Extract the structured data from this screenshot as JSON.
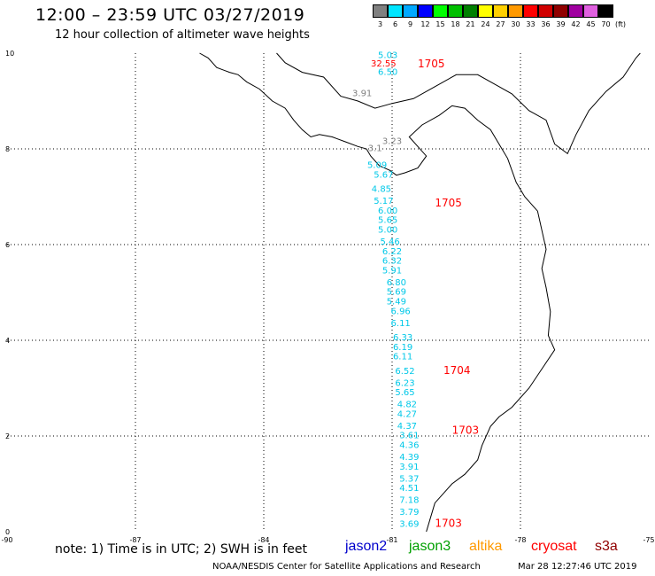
{
  "header": {
    "title": "12:00 – 23:59 UTC 03/27/2019",
    "subtitle": "12 hour collection of altimeter wave heights"
  },
  "legend": {
    "units": "(ft)",
    "bins": [
      {
        "label": "3",
        "color": "#808080"
      },
      {
        "label": "6",
        "color": "#00e5ff"
      },
      {
        "label": "9",
        "color": "#00a8ff"
      },
      {
        "label": "12",
        "color": "#0000ff"
      },
      {
        "label": "15",
        "color": "#00ff00"
      },
      {
        "label": "18",
        "color": "#00c000"
      },
      {
        "label": "21",
        "color": "#008000"
      },
      {
        "label": "24",
        "color": "#ffff00"
      },
      {
        "label": "27",
        "color": "#ffd000"
      },
      {
        "label": "30",
        "color": "#ff9900"
      },
      {
        "label": "33",
        "color": "#ff0000"
      },
      {
        "label": "36",
        "color": "#d00000"
      },
      {
        "label": "39",
        "color": "#900000"
      },
      {
        "label": "42",
        "color": "#a000a0"
      },
      {
        "label": "45",
        "color": "#e060e0"
      },
      {
        "label": "70",
        "color": "#000000"
      }
    ]
  },
  "axes": {
    "x_ticks": [
      "-90",
      "-87",
      "-84",
      "-81",
      "-78",
      "-75"
    ],
    "y_ticks": [
      "0",
      "2",
      "4",
      "6",
      "8",
      "10"
    ]
  },
  "observations": [
    {
      "lon": -81.1,
      "lat": 9.9,
      "value": "5.03",
      "color": "#00c8e8"
    },
    {
      "lon": -81.2,
      "lat": 9.72,
      "value": "32.55",
      "color": "#ff0000"
    },
    {
      "lon": -81.1,
      "lat": 9.55,
      "value": "6.50",
      "color": "#00c8e8"
    },
    {
      "lon": -81.7,
      "lat": 9.1,
      "value": "3.91",
      "color": "#808080"
    },
    {
      "lon": -81.0,
      "lat": 8.1,
      "value": "3.23",
      "color": "#808080"
    },
    {
      "lon": -81.4,
      "lat": 7.95,
      "value": "3.1",
      "color": "#808080"
    },
    {
      "lon": -81.35,
      "lat": 7.6,
      "value": "5.09",
      "color": "#00c8e8"
    },
    {
      "lon": -81.2,
      "lat": 7.4,
      "value": "5.67",
      "color": "#00c8e8"
    },
    {
      "lon": -81.25,
      "lat": 7.1,
      "value": "4.85",
      "color": "#00c8e8"
    },
    {
      "lon": -81.2,
      "lat": 6.85,
      "value": "5.17",
      "color": "#00c8e8"
    },
    {
      "lon": -81.1,
      "lat": 6.65,
      "value": "6.00",
      "color": "#00c8e8"
    },
    {
      "lon": -81.1,
      "lat": 6.45,
      "value": "5.65",
      "color": "#00c8e8"
    },
    {
      "lon": -81.1,
      "lat": 6.25,
      "value": "5.00",
      "color": "#00c8e8"
    },
    {
      "lon": -81.05,
      "lat": 6.0,
      "value": "5.46",
      "color": "#00c8e8"
    },
    {
      "lon": -81.0,
      "lat": 5.8,
      "value": "6.22",
      "color": "#00c8e8"
    },
    {
      "lon": -81.0,
      "lat": 5.6,
      "value": "6.32",
      "color": "#00c8e8"
    },
    {
      "lon": -81.0,
      "lat": 5.4,
      "value": "5.91",
      "color": "#00c8e8"
    },
    {
      "lon": -80.9,
      "lat": 5.15,
      "value": "6.80",
      "color": "#00c8e8"
    },
    {
      "lon": -80.9,
      "lat": 4.95,
      "value": "5.69",
      "color": "#00c8e8"
    },
    {
      "lon": -80.9,
      "lat": 4.75,
      "value": "5.49",
      "color": "#00c8e8"
    },
    {
      "lon": -80.8,
      "lat": 4.55,
      "value": "6.96",
      "color": "#00c8e8"
    },
    {
      "lon": -80.8,
      "lat": 4.3,
      "value": "6.11",
      "color": "#00c8e8"
    },
    {
      "lon": -80.75,
      "lat": 4.0,
      "value": "6.33",
      "color": "#00c8e8"
    },
    {
      "lon": -80.75,
      "lat": 3.8,
      "value": "6.19",
      "color": "#00c8e8"
    },
    {
      "lon": -80.75,
      "lat": 3.6,
      "value": "6.11",
      "color": "#00c8e8"
    },
    {
      "lon": -80.7,
      "lat": 3.3,
      "value": "6.52",
      "color": "#00c8e8"
    },
    {
      "lon": -80.7,
      "lat": 3.05,
      "value": "6.23",
      "color": "#00c8e8"
    },
    {
      "lon": -80.7,
      "lat": 2.85,
      "value": "5.65",
      "color": "#00c8e8"
    },
    {
      "lon": -80.65,
      "lat": 2.6,
      "value": "4.82",
      "color": "#00c8e8"
    },
    {
      "lon": -80.65,
      "lat": 2.4,
      "value": "4.27",
      "color": "#00c8e8"
    },
    {
      "lon": -80.65,
      "lat": 2.15,
      "value": "4.37",
      "color": "#00c8e8"
    },
    {
      "lon": -80.6,
      "lat": 1.95,
      "value": "3.61",
      "color": "#00c8e8"
    },
    {
      "lon": -80.6,
      "lat": 1.75,
      "value": "4.36",
      "color": "#00c8e8"
    },
    {
      "lon": -80.6,
      "lat": 1.5,
      "value": "4.39",
      "color": "#00c8e8"
    },
    {
      "lon": -80.6,
      "lat": 1.3,
      "value": "3.91",
      "color": "#00c8e8"
    },
    {
      "lon": -80.6,
      "lat": 1.05,
      "value": "5.37",
      "color": "#00c8e8"
    },
    {
      "lon": -80.6,
      "lat": 0.85,
      "value": "4.51",
      "color": "#00c8e8"
    },
    {
      "lon": -80.6,
      "lat": 0.6,
      "value": "7.18",
      "color": "#00c8e8"
    },
    {
      "lon": -80.6,
      "lat": 0.35,
      "value": "3.79",
      "color": "#00c8e8"
    },
    {
      "lon": -80.6,
      "lat": 0.1,
      "value": "3.69",
      "color": "#00c8e8"
    }
  ],
  "pass_times": [
    {
      "lon": -80.4,
      "lat": 9.7,
      "value": "1705"
    },
    {
      "lon": -80.0,
      "lat": 6.8,
      "value": "1705"
    },
    {
      "lon": -79.8,
      "lat": 3.3,
      "value": "1704"
    },
    {
      "lon": -79.6,
      "lat": 2.05,
      "value": "1703"
    },
    {
      "lon": -80.0,
      "lat": 0.1,
      "value": "1703"
    }
  ],
  "footer": {
    "note": "note:  1) Time is in UTC;  2) SWH is in feet",
    "satellites": [
      {
        "name": "jason2",
        "color": "#0000cc"
      },
      {
        "name": "jason3",
        "color": "#00a000"
      },
      {
        "name": "altika",
        "color": "#ff9900"
      },
      {
        "name": "cryosat",
        "color": "#ff0000"
      },
      {
        "name": "s3a",
        "color": "#900000"
      }
    ],
    "credit": "NOAA/NESDIS Center for Satellite Applications and Research",
    "timestamp": "Mar 28 12:27:46 UTC 2019"
  }
}
